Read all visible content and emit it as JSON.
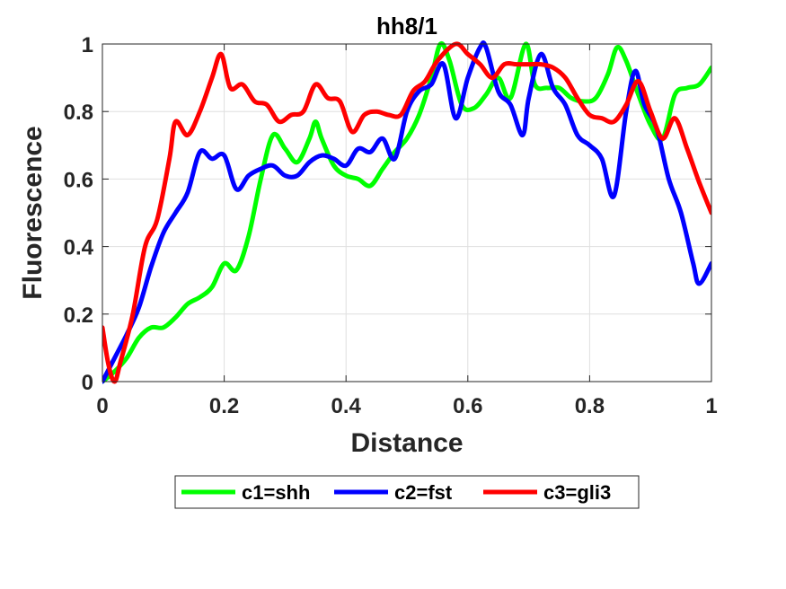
{
  "chart_data": {
    "type": "line",
    "title": "hh8/1",
    "xlabel": "Distance",
    "ylabel": "Fluorescence",
    "xlim": [
      0,
      1
    ],
    "ylim": [
      0,
      1
    ],
    "xticks": [
      "0",
      "0.2",
      "0.4",
      "0.6",
      "0.8",
      "1"
    ],
    "yticks": [
      "0",
      "0.2",
      "0.4",
      "0.6",
      "0.8",
      "1"
    ],
    "grid": true,
    "legend_position": "bottom-outside",
    "series": [
      {
        "name": "c1=shh",
        "color": "#00ff00",
        "x": [
          0.0,
          0.02,
          0.04,
          0.06,
          0.08,
          0.1,
          0.12,
          0.14,
          0.16,
          0.18,
          0.2,
          0.22,
          0.24,
          0.26,
          0.28,
          0.3,
          0.32,
          0.34,
          0.35,
          0.36,
          0.38,
          0.4,
          0.42,
          0.44,
          0.46,
          0.48,
          0.5,
          0.52,
          0.54,
          0.555,
          0.57,
          0.59,
          0.61,
          0.63,
          0.65,
          0.67,
          0.695,
          0.71,
          0.73,
          0.75,
          0.77,
          0.79,
          0.81,
          0.83,
          0.845,
          0.86,
          0.88,
          0.9,
          0.92,
          0.94,
          0.96,
          0.98,
          1.0
        ],
        "y": [
          0.0,
          0.03,
          0.07,
          0.13,
          0.16,
          0.16,
          0.19,
          0.23,
          0.25,
          0.28,
          0.35,
          0.33,
          0.43,
          0.6,
          0.73,
          0.69,
          0.65,
          0.72,
          0.77,
          0.72,
          0.64,
          0.61,
          0.6,
          0.58,
          0.63,
          0.68,
          0.72,
          0.79,
          0.9,
          1.0,
          0.95,
          0.82,
          0.81,
          0.85,
          0.9,
          0.84,
          1.0,
          0.88,
          0.87,
          0.87,
          0.84,
          0.83,
          0.84,
          0.91,
          0.99,
          0.95,
          0.85,
          0.76,
          0.72,
          0.85,
          0.87,
          0.88,
          0.93
        ]
      },
      {
        "name": "c2=fst",
        "color": "#0000ff",
        "x": [
          0.0,
          0.02,
          0.04,
          0.06,
          0.08,
          0.1,
          0.12,
          0.14,
          0.16,
          0.18,
          0.2,
          0.22,
          0.24,
          0.26,
          0.28,
          0.3,
          0.32,
          0.34,
          0.36,
          0.38,
          0.4,
          0.42,
          0.44,
          0.46,
          0.48,
          0.5,
          0.52,
          0.54,
          0.56,
          0.58,
          0.6,
          0.62,
          0.63,
          0.65,
          0.67,
          0.69,
          0.7,
          0.72,
          0.74,
          0.76,
          0.78,
          0.8,
          0.82,
          0.84,
          0.86,
          0.875,
          0.89,
          0.91,
          0.93,
          0.95,
          0.97,
          0.98,
          1.0
        ],
        "y": [
          0.0,
          0.07,
          0.14,
          0.22,
          0.34,
          0.44,
          0.5,
          0.56,
          0.68,
          0.66,
          0.67,
          0.57,
          0.61,
          0.63,
          0.64,
          0.61,
          0.61,
          0.65,
          0.67,
          0.66,
          0.64,
          0.69,
          0.68,
          0.72,
          0.66,
          0.8,
          0.86,
          0.88,
          0.94,
          0.78,
          0.9,
          0.99,
          0.99,
          0.86,
          0.82,
          0.73,
          0.84,
          0.97,
          0.87,
          0.82,
          0.73,
          0.7,
          0.66,
          0.55,
          0.8,
          0.92,
          0.82,
          0.75,
          0.6,
          0.5,
          0.35,
          0.29,
          0.35
        ]
      },
      {
        "name": "c3=gli3",
        "color": "#ff0000",
        "x": [
          0.0,
          0.01,
          0.02,
          0.03,
          0.05,
          0.07,
          0.09,
          0.11,
          0.12,
          0.14,
          0.16,
          0.18,
          0.195,
          0.21,
          0.23,
          0.25,
          0.27,
          0.29,
          0.31,
          0.33,
          0.35,
          0.37,
          0.39,
          0.41,
          0.43,
          0.45,
          0.47,
          0.49,
          0.51,
          0.53,
          0.55,
          0.58,
          0.6,
          0.62,
          0.64,
          0.66,
          0.68,
          0.7,
          0.72,
          0.74,
          0.76,
          0.78,
          0.8,
          0.82,
          0.84,
          0.86,
          0.88,
          0.9,
          0.92,
          0.94,
          0.96,
          0.98,
          1.0
        ],
        "y": [
          0.16,
          0.05,
          0.0,
          0.06,
          0.2,
          0.4,
          0.48,
          0.66,
          0.77,
          0.73,
          0.8,
          0.9,
          0.97,
          0.87,
          0.88,
          0.83,
          0.82,
          0.77,
          0.79,
          0.8,
          0.88,
          0.84,
          0.83,
          0.74,
          0.79,
          0.8,
          0.79,
          0.79,
          0.86,
          0.89,
          0.95,
          1.0,
          0.97,
          0.94,
          0.9,
          0.94,
          0.94,
          0.94,
          0.94,
          0.93,
          0.9,
          0.84,
          0.79,
          0.78,
          0.77,
          0.82,
          0.89,
          0.8,
          0.72,
          0.78,
          0.69,
          0.59,
          0.5
        ]
      }
    ]
  }
}
